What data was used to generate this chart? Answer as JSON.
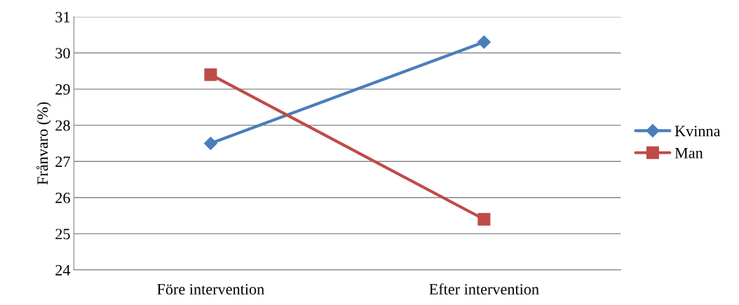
{
  "chart_data": {
    "type": "line",
    "ylabel": "Frånvaro (%)",
    "categories": [
      "Före intervention",
      "Efter intervention"
    ],
    "series": [
      {
        "name": "Kvinna",
        "color": "#4a7ebb",
        "marker": "diamond",
        "values": [
          27.5,
          30.3
        ]
      },
      {
        "name": "Man",
        "color": "#be4b48",
        "marker": "square",
        "values": [
          29.4,
          25.4
        ]
      }
    ],
    "ylim": [
      24,
      31
    ],
    "yticks": [
      24,
      25,
      26,
      27,
      28,
      29,
      30,
      31
    ],
    "grid": "y",
    "legend": "right",
    "line_style": "solid"
  }
}
